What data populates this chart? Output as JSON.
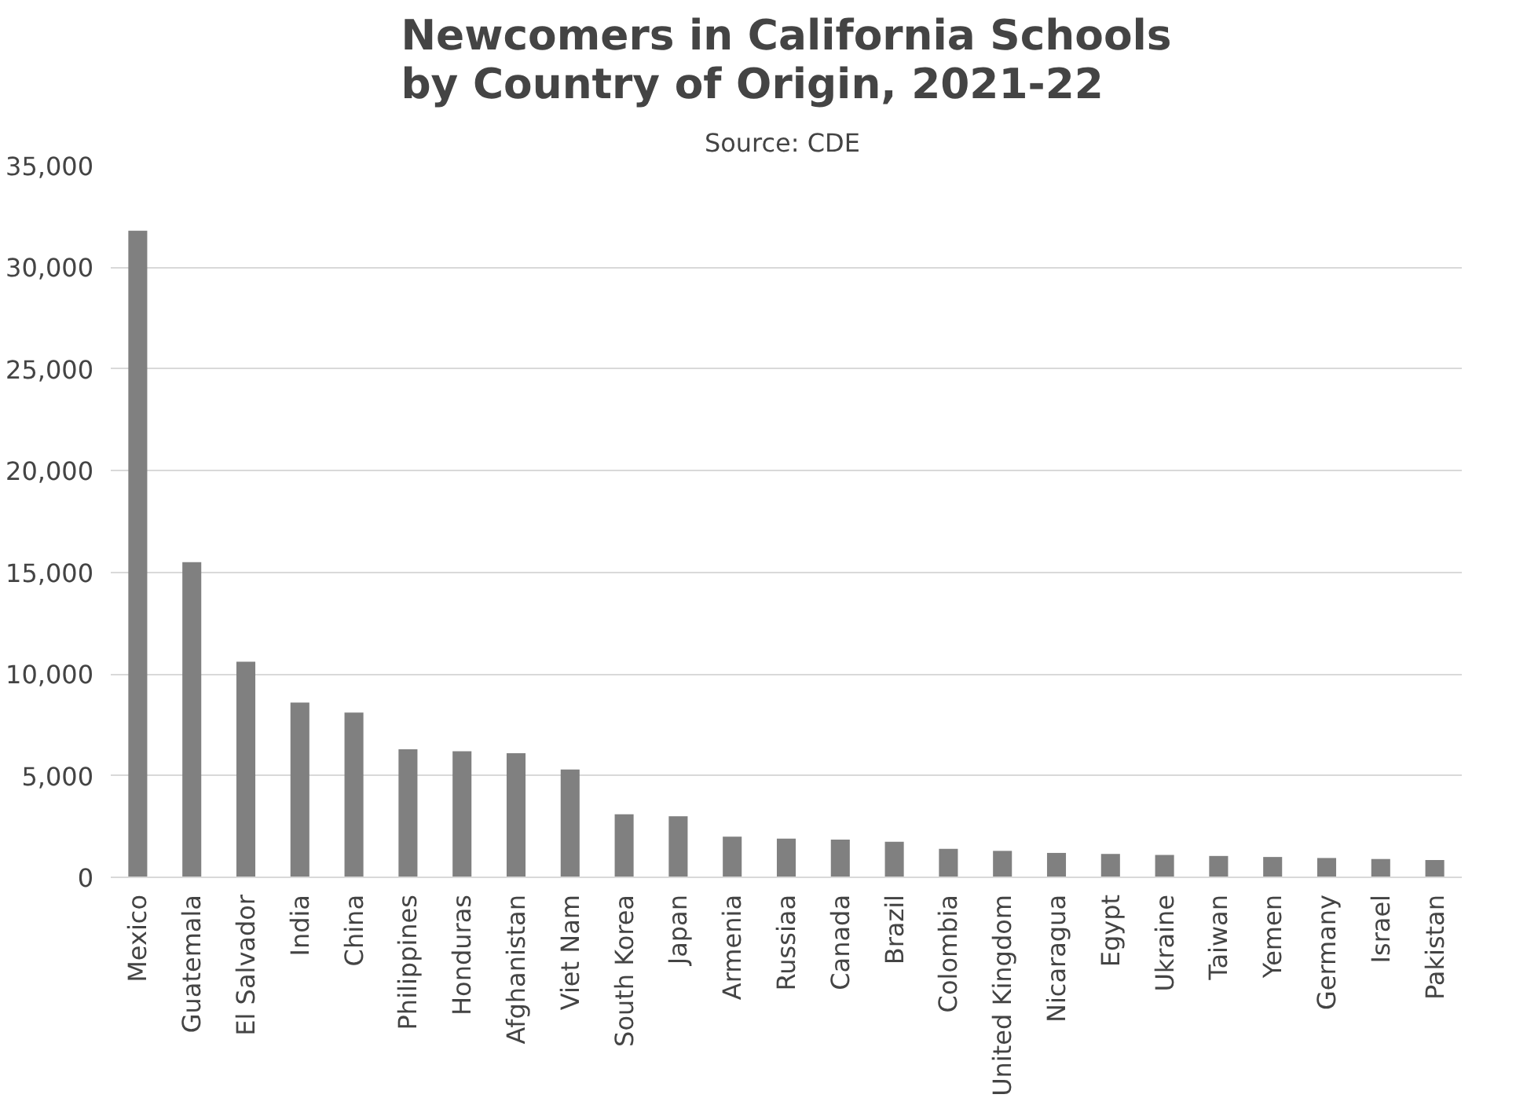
{
  "chart_data": {
    "type": "bar",
    "title": "Newcomers in California Schools\nby Country of Origin, 2021-22",
    "subtitle": "Source:  CDE",
    "categories": [
      "Mexico",
      "Guatemala",
      "El Salvador",
      "India",
      "China",
      "Philippines",
      "Honduras",
      "Afghanistan",
      "Viet Nam",
      "South Korea",
      "Japan",
      "Armenia",
      "Russiaa",
      "Canada",
      "Brazil",
      "Colombia",
      "United Kingdom",
      "Nicaragua",
      "Egypt",
      "Ukraine",
      "Taiwan",
      "Yemen",
      "Germany",
      "Israel",
      "Pakistan"
    ],
    "values": [
      31800,
      15500,
      10600,
      8600,
      8100,
      6300,
      6200,
      6100,
      5300,
      3100,
      3000,
      2000,
      1900,
      1850,
      1750,
      1400,
      1300,
      1200,
      1150,
      1100,
      1050,
      1000,
      950,
      900,
      850
    ],
    "color": "#808080",
    "ylim": [
      0,
      35000
    ],
    "yticks": [
      {
        "value": 0,
        "label": "0"
      },
      {
        "value": 5000,
        "label": "5,000"
      },
      {
        "value": 10000,
        "label": "10,000"
      },
      {
        "value": 15000,
        "label": "15,000"
      },
      {
        "value": 20000,
        "label": "20,000"
      },
      {
        "value": 25000,
        "label": "25,000"
      },
      {
        "value": 30000,
        "label": "30,000"
      },
      {
        "value": 35000,
        "label": "35,000"
      }
    ],
    "grid": "y"
  }
}
